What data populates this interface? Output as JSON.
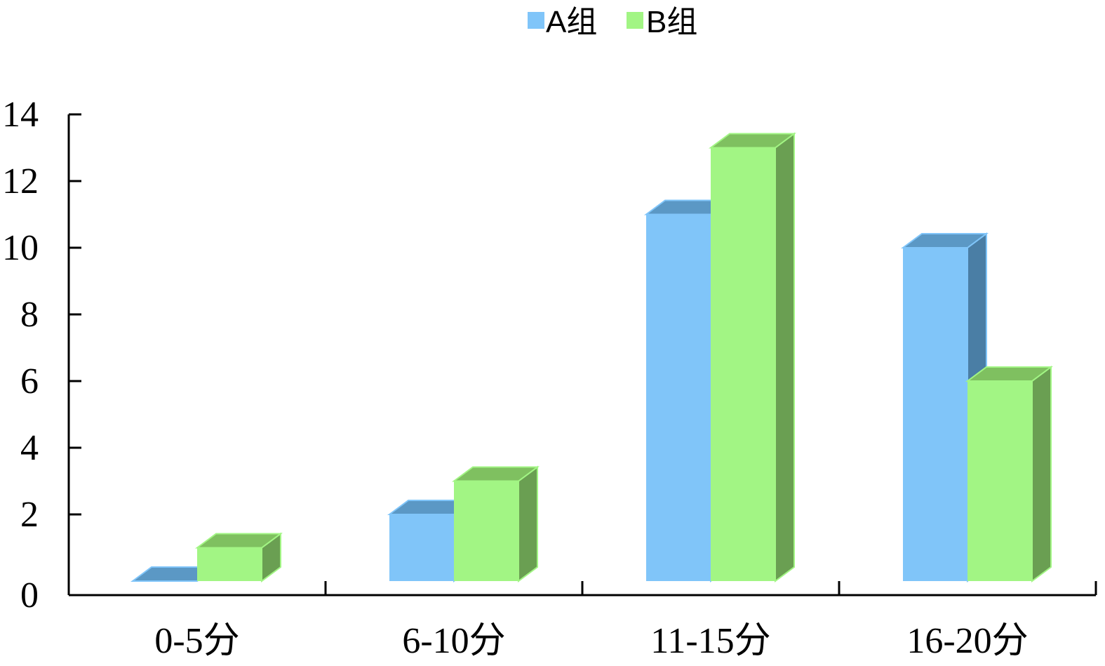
{
  "chart_data": {
    "type": "bar",
    "title": "",
    "xlabel": "",
    "ylabel": "",
    "categories": [
      "0-5分",
      "6-10分",
      "11-15分",
      "16-20分"
    ],
    "series": [
      {
        "name": "A组",
        "values": [
          0,
          2,
          11,
          10
        ],
        "color": "#80C5F9",
        "top_color": "#5B98C5",
        "side_color": "#4A7EA5"
      },
      {
        "name": "B组",
        "values": [
          1,
          3,
          13,
          6
        ],
        "color": "#A2F584",
        "top_color": "#7FC060",
        "side_color": "#6A9F52"
      }
    ],
    "ylim": [
      0,
      14
    ],
    "yticks": [
      "0",
      "2",
      "4",
      "6",
      "8",
      "10",
      "12",
      "14"
    ],
    "grid": false,
    "legend_position": "top-center",
    "style": "3d-column"
  }
}
